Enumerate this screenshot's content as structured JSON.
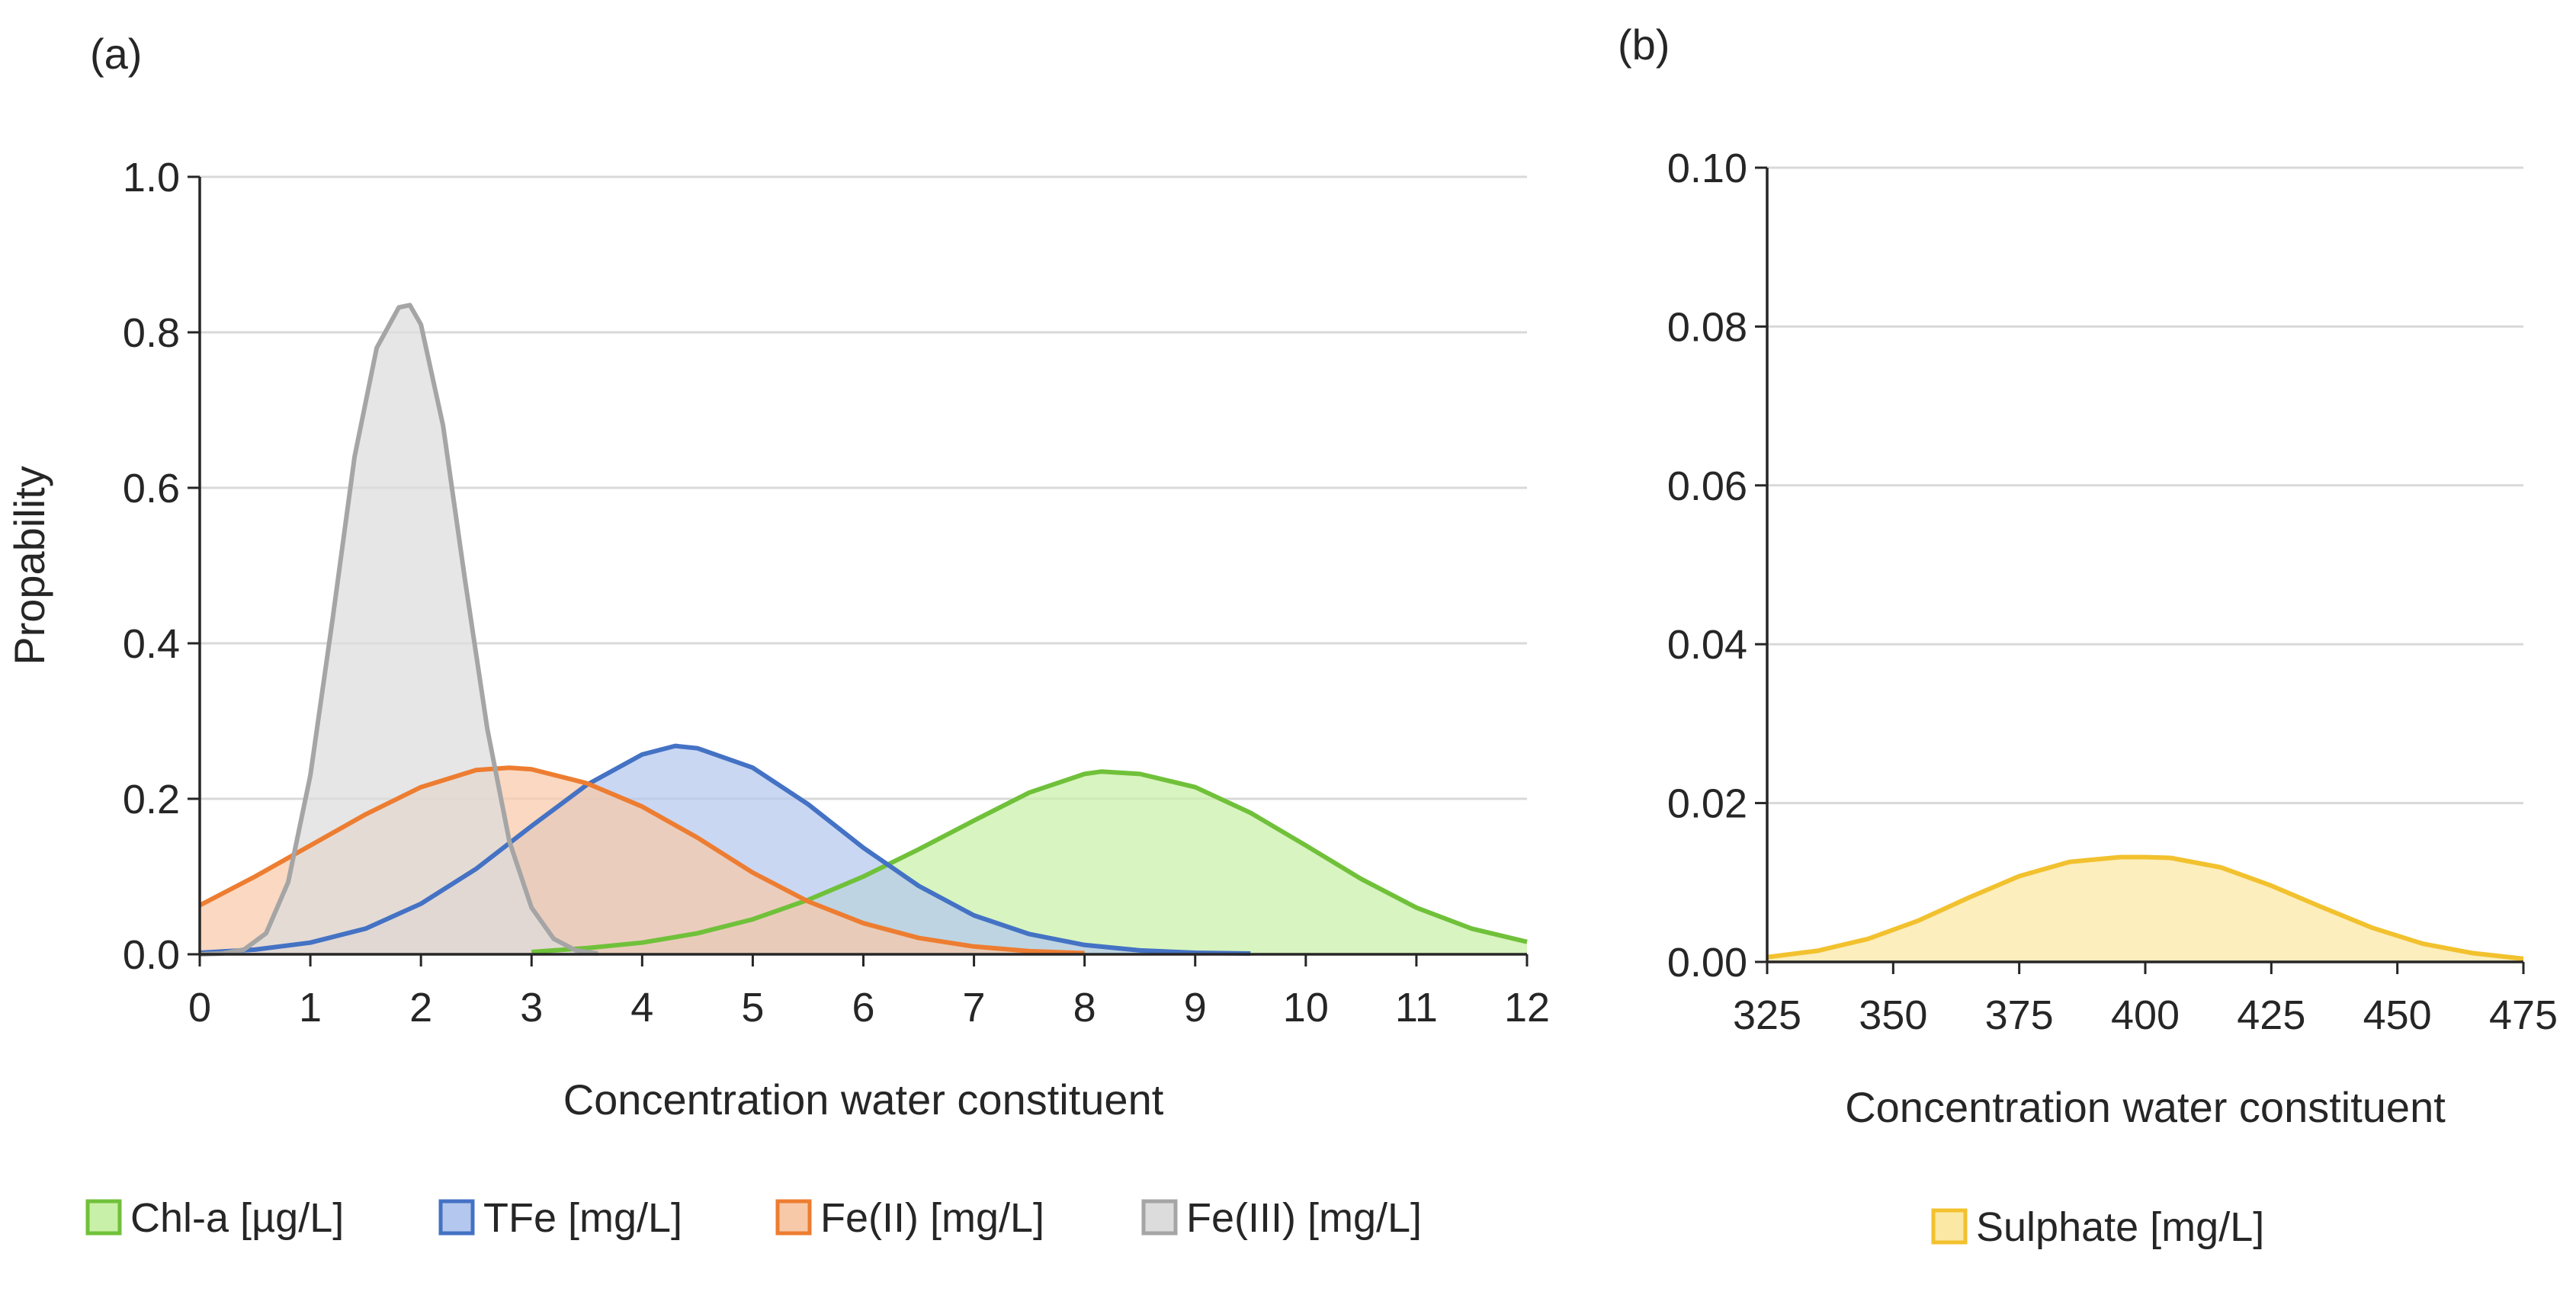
{
  "chart_data": [
    {
      "panel_label": "(a)",
      "type": "area",
      "xlabel": "Concentration water constituent",
      "ylabel": "Propability",
      "xlim": [
        0,
        12
      ],
      "ylim": [
        0,
        1.0
      ],
      "xticks": [
        "0",
        "1",
        "2",
        "3",
        "4",
        "5",
        "6",
        "7",
        "8",
        "9",
        "10",
        "11",
        "12"
      ],
      "yticks": [
        "0.0",
        "0.2",
        "0.4",
        "0.6",
        "0.8",
        "1.0"
      ],
      "grid": true,
      "legend_position": "bottom",
      "series": [
        {
          "name": "Chl-a [µg/L]",
          "stroke": "#70c13a",
          "fill": "#c9f0a8",
          "x": [
            3.0,
            3.5,
            4.0,
            4.5,
            5.0,
            5.5,
            6.0,
            6.5,
            7.0,
            7.5,
            8.0,
            8.15,
            8.5,
            9.0,
            9.5,
            10.0,
            10.5,
            11.0,
            11.5,
            12.0
          ],
          "y": [
            0.003,
            0.008,
            0.015,
            0.027,
            0.045,
            0.07,
            0.1,
            0.135,
            0.172,
            0.208,
            0.232,
            0.235,
            0.232,
            0.215,
            0.182,
            0.14,
            0.097,
            0.06,
            0.033,
            0.016
          ]
        },
        {
          "name": "TFe [mg/L]",
          "stroke": "#4472c4",
          "fill": "#b4c7ee",
          "x": [
            0.0,
            0.5,
            1.0,
            1.5,
            2.0,
            2.5,
            3.0,
            3.5,
            4.0,
            4.3,
            4.5,
            5.0,
            5.5,
            6.0,
            6.5,
            7.0,
            7.5,
            8.0,
            8.5,
            9.0,
            9.5
          ],
          "y": [
            0.002,
            0.006,
            0.015,
            0.033,
            0.065,
            0.11,
            0.165,
            0.218,
            0.257,
            0.268,
            0.265,
            0.24,
            0.193,
            0.137,
            0.088,
            0.05,
            0.026,
            0.012,
            0.005,
            0.002,
            0.001
          ]
        },
        {
          "name": "Fe(II) [mg/L]",
          "stroke": "#ed7d31",
          "fill": "#f8c9a9",
          "x": [
            0.0,
            0.5,
            1.0,
            1.5,
            2.0,
            2.5,
            2.8,
            3.0,
            3.5,
            4.0,
            4.5,
            5.0,
            5.5,
            6.0,
            6.5,
            7.0,
            7.5,
            8.0
          ],
          "y": [
            0.063,
            0.1,
            0.14,
            0.18,
            0.215,
            0.237,
            0.24,
            0.238,
            0.22,
            0.19,
            0.15,
            0.105,
            0.068,
            0.04,
            0.021,
            0.01,
            0.004,
            0.0015
          ]
        },
        {
          "name": "Fe(III) [mg/L]",
          "stroke": "#a5a5a5",
          "fill": "#dcdcdc",
          "x": [
            0.0,
            0.2,
            0.4,
            0.6,
            0.8,
            1.0,
            1.2,
            1.4,
            1.6,
            1.8,
            1.9,
            2.0,
            2.2,
            2.4,
            2.6,
            2.8,
            3.0,
            3.2,
            3.4,
            3.6
          ],
          "y": [
            0.0,
            0.001,
            0.006,
            0.027,
            0.093,
            0.23,
            0.43,
            0.64,
            0.78,
            0.832,
            0.835,
            0.81,
            0.68,
            0.48,
            0.29,
            0.145,
            0.06,
            0.02,
            0.005,
            0.001
          ]
        }
      ]
    },
    {
      "panel_label": "(b)",
      "type": "area",
      "xlabel": "Concentration water constituent",
      "ylabel": "",
      "xlim": [
        325,
        475
      ],
      "ylim": [
        0,
        0.1
      ],
      "xticks": [
        "325",
        "350",
        "375",
        "400",
        "425",
        "450",
        "475"
      ],
      "yticks": [
        "0.00",
        "0.02",
        "0.04",
        "0.06",
        "0.08",
        "0.10"
      ],
      "grid": true,
      "legend_position": "bottom",
      "series": [
        {
          "name": "Sulphate [mg/L]",
          "stroke": "#f2c12e",
          "fill": "#fbe8a4",
          "x": [
            325,
            335,
            345,
            355,
            365,
            375,
            385,
            395,
            400,
            405,
            415,
            425,
            435,
            445,
            455,
            465,
            475
          ],
          "y": [
            0.0006,
            0.0014,
            0.0029,
            0.0052,
            0.0081,
            0.0108,
            0.0126,
            0.0132,
            0.0132,
            0.0131,
            0.0119,
            0.0096,
            0.0069,
            0.0043,
            0.0023,
            0.0011,
            0.0004
          ]
        }
      ]
    }
  ]
}
